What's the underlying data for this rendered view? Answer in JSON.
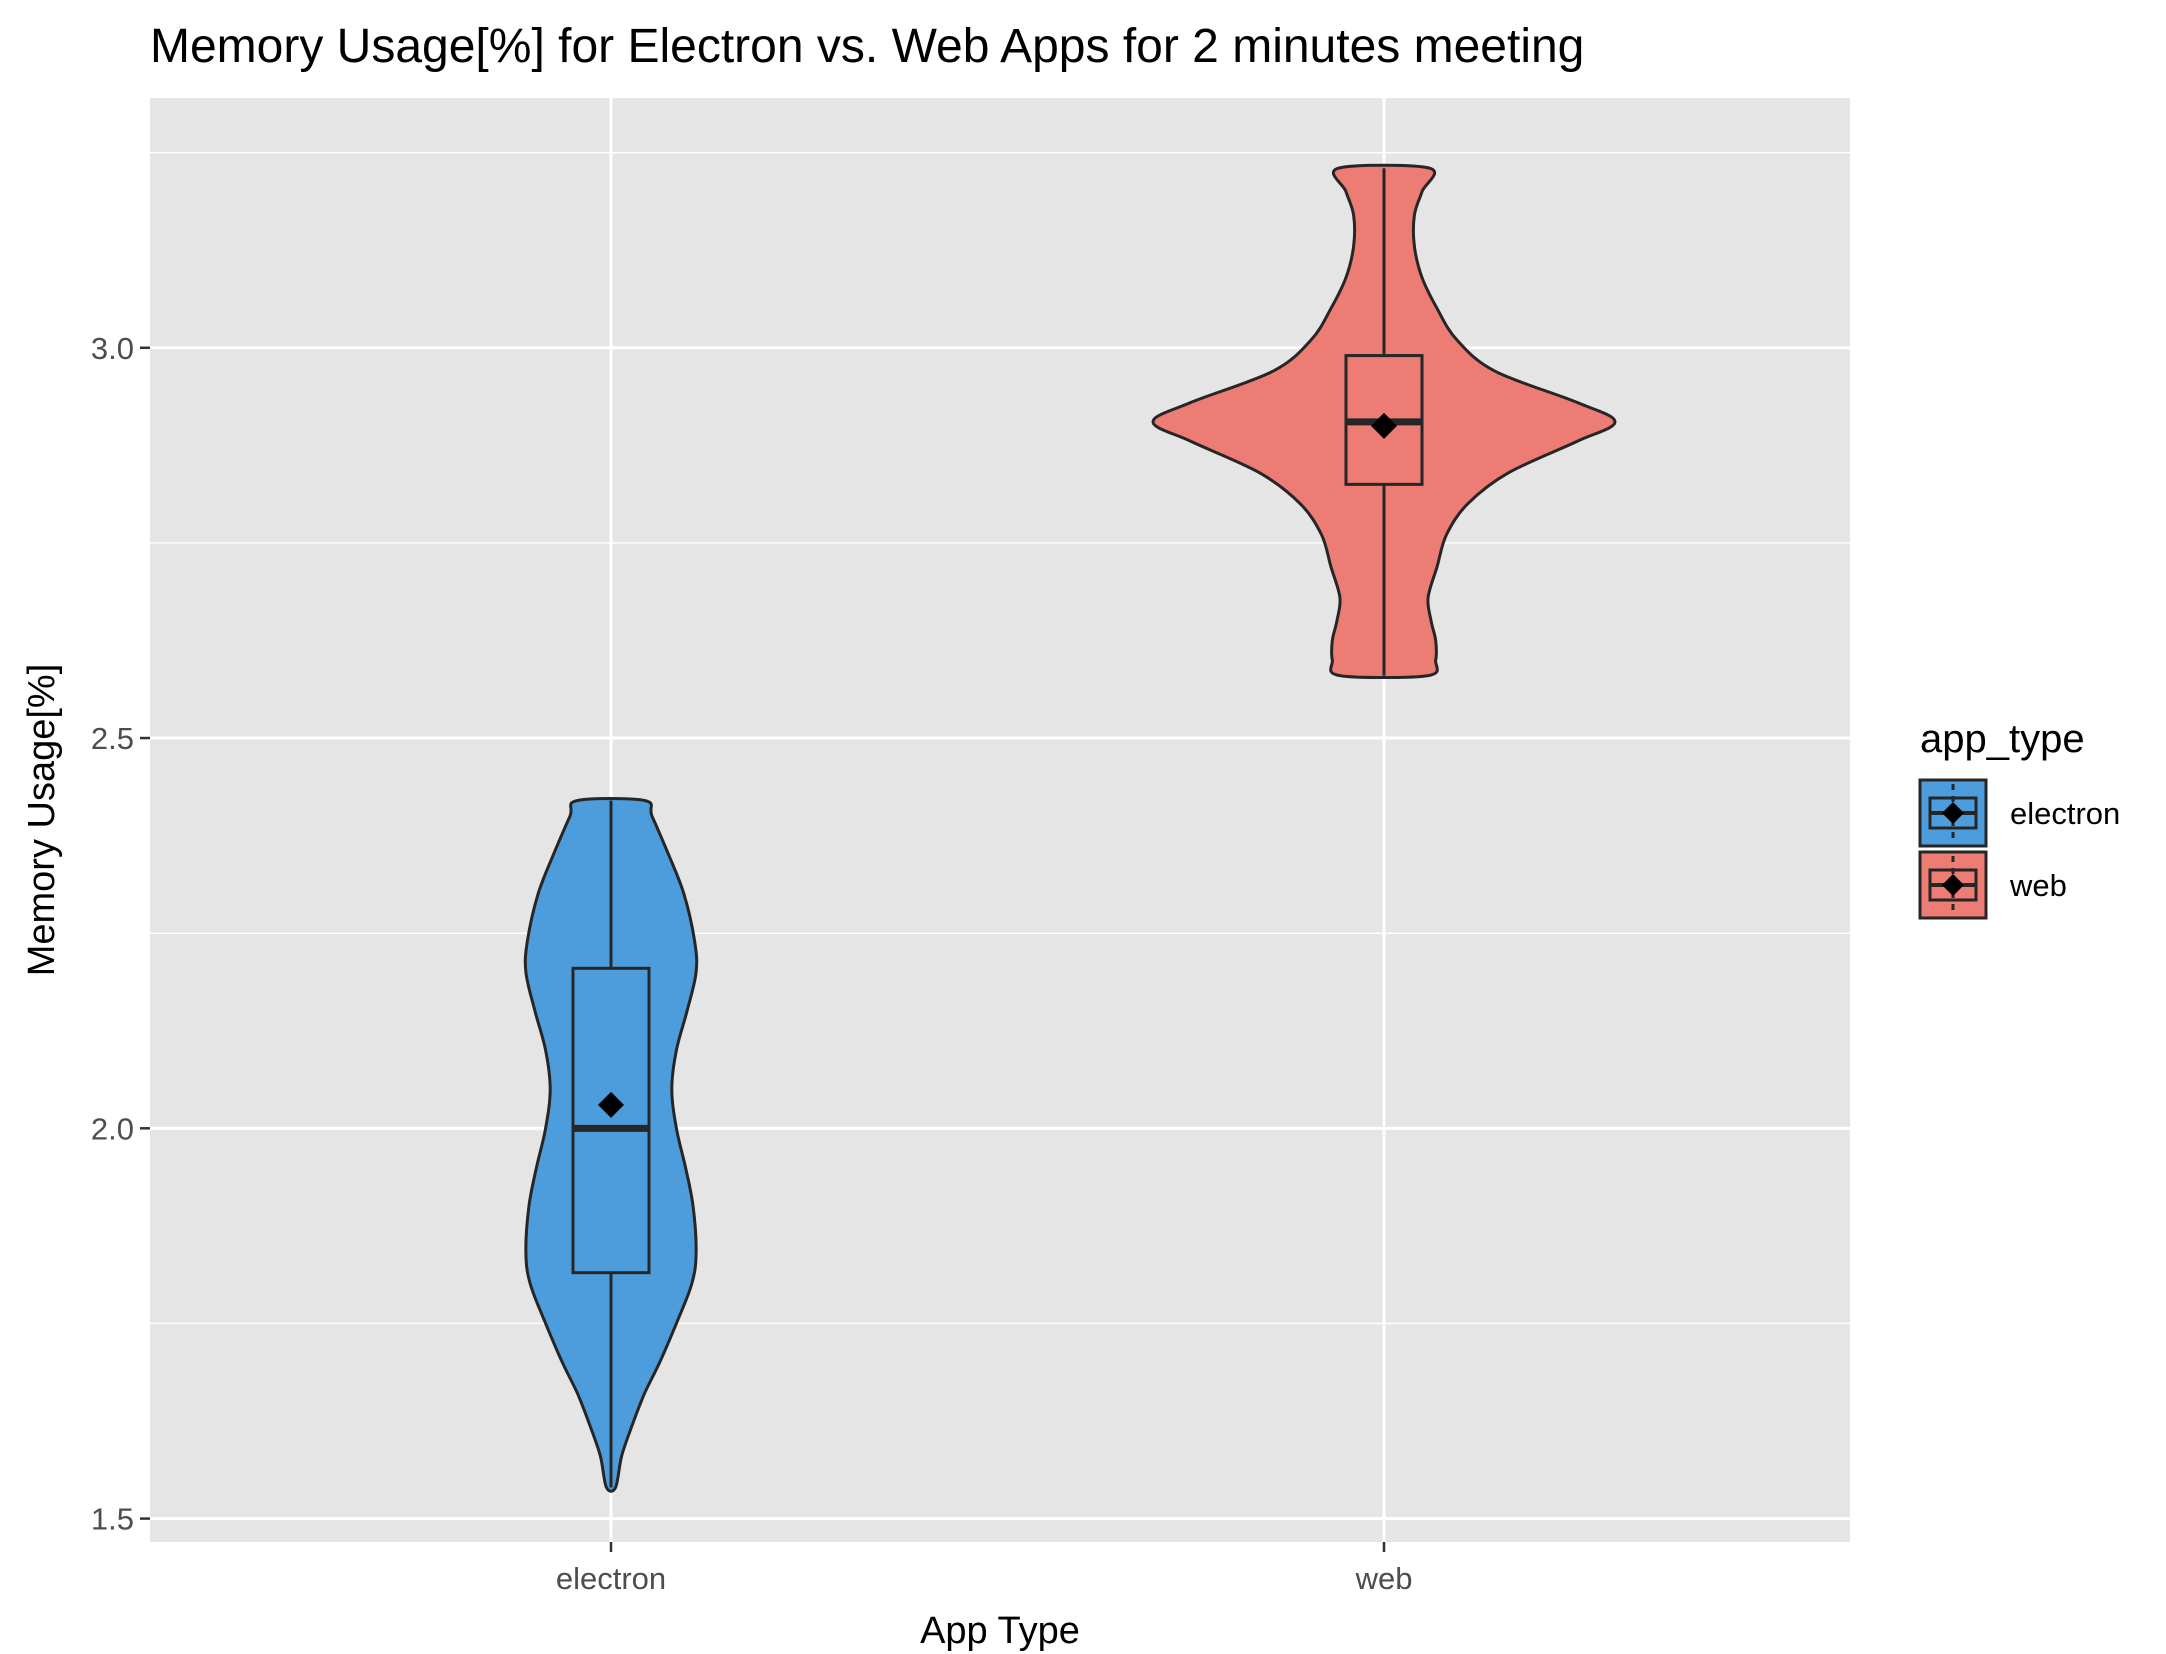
{
  "chart_data": {
    "type": "violin",
    "title": "Memory Usage[%] for Electron vs. Web Apps for 2 minutes meeting",
    "xlabel": "App Type",
    "ylabel": "Memory Usage[%]",
    "categories": [
      "electron",
      "web"
    ],
    "y_ticks": [
      "1.5",
      "2.0",
      "2.5",
      "3.0"
    ],
    "ylim": [
      1.47,
      3.32
    ],
    "grid": true,
    "legend": {
      "title": "app_type",
      "position": "right",
      "entries": [
        "electron",
        "web"
      ]
    },
    "colors": {
      "electron": "#4d9ddd",
      "web": "#ec7c74",
      "panel": "#e5e5e5",
      "grid": "#ffffff",
      "outline": "#262626"
    },
    "series": [
      {
        "name": "electron",
        "min": 1.54,
        "max": 2.42,
        "q1": 1.815,
        "median": 2.0,
        "q3": 2.205,
        "mean": 2.03,
        "violin_profile": [
          [
            1.54,
            0.03
          ],
          [
            1.58,
            0.07
          ],
          [
            1.62,
            0.14
          ],
          [
            1.66,
            0.22
          ],
          [
            1.7,
            0.32
          ],
          [
            1.75,
            0.43
          ],
          [
            1.8,
            0.53
          ],
          [
            1.84,
            0.56
          ],
          [
            1.9,
            0.54
          ],
          [
            1.95,
            0.49
          ],
          [
            2.0,
            0.43
          ],
          [
            2.05,
            0.4
          ],
          [
            2.1,
            0.43
          ],
          [
            2.15,
            0.5
          ],
          [
            2.2,
            0.56
          ],
          [
            2.24,
            0.55
          ],
          [
            2.3,
            0.48
          ],
          [
            2.35,
            0.38
          ],
          [
            2.4,
            0.27
          ],
          [
            2.42,
            0.22
          ]
        ]
      },
      {
        "name": "web",
        "min": 2.58,
        "max": 3.23,
        "q1": 2.825,
        "median": 2.905,
        "q3": 2.99,
        "mean": 2.9,
        "violin_profile": [
          [
            2.58,
            0.29
          ],
          [
            2.6,
            0.34
          ],
          [
            2.625,
            0.34
          ],
          [
            2.65,
            0.31
          ],
          [
            2.68,
            0.29
          ],
          [
            2.72,
            0.35
          ],
          [
            2.76,
            0.41
          ],
          [
            2.8,
            0.55
          ],
          [
            2.84,
            0.82
          ],
          [
            2.88,
            1.27
          ],
          [
            2.905,
            1.52
          ],
          [
            2.93,
            1.27
          ],
          [
            2.97,
            0.73
          ],
          [
            3.01,
            0.48
          ],
          [
            3.05,
            0.35
          ],
          [
            3.09,
            0.25
          ],
          [
            3.13,
            0.2
          ],
          [
            3.17,
            0.2
          ],
          [
            3.2,
            0.25
          ],
          [
            3.23,
            0.3
          ]
        ]
      }
    ]
  }
}
